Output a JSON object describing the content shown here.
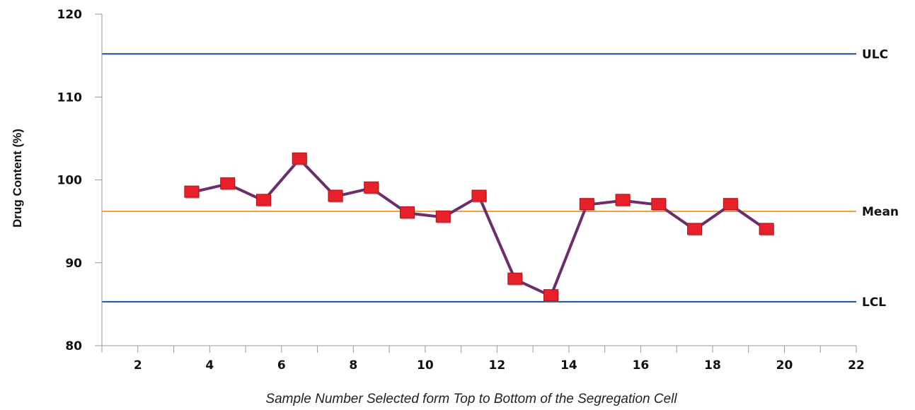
{
  "chart_data": {
    "type": "line",
    "xlabel": "Sample Number Selected form Top to Bottom of the Segregation Cell",
    "ylabel": "Drug Content (%)",
    "xlim": [
      1,
      22
    ],
    "ylim": [
      80,
      120
    ],
    "x_ticks": [
      2,
      4,
      6,
      8,
      10,
      12,
      14,
      16,
      18,
      20,
      22
    ],
    "y_ticks": [
      80,
      90,
      100,
      110,
      120
    ],
    "grid": false,
    "series": [
      {
        "x": [
          3.5,
          4.5,
          5.5,
          6.5,
          7.5,
          8.5,
          9.5,
          10.5,
          11.5,
          12.5,
          13.5,
          14.5,
          15.5,
          16.5,
          17.5,
          18.5,
          19.5
        ],
        "y": [
          98.5,
          99.5,
          97.5,
          102.5,
          98.0,
          99.0,
          96.0,
          95.5,
          98.0,
          88.0,
          86.0,
          97.0,
          97.5,
          97.0,
          94.0,
          97.0,
          94.0
        ],
        "line_color": "#6b2d6b",
        "marker_color": "#e8202a"
      }
    ],
    "reference_lines": [
      {
        "label": "ULC",
        "y": 115.2,
        "color": "#1f4e96"
      },
      {
        "label": "Mean",
        "y": 96.2,
        "color": "#f0a040"
      },
      {
        "label": "LCL",
        "y": 85.3,
        "color": "#1f4e96"
      }
    ]
  }
}
